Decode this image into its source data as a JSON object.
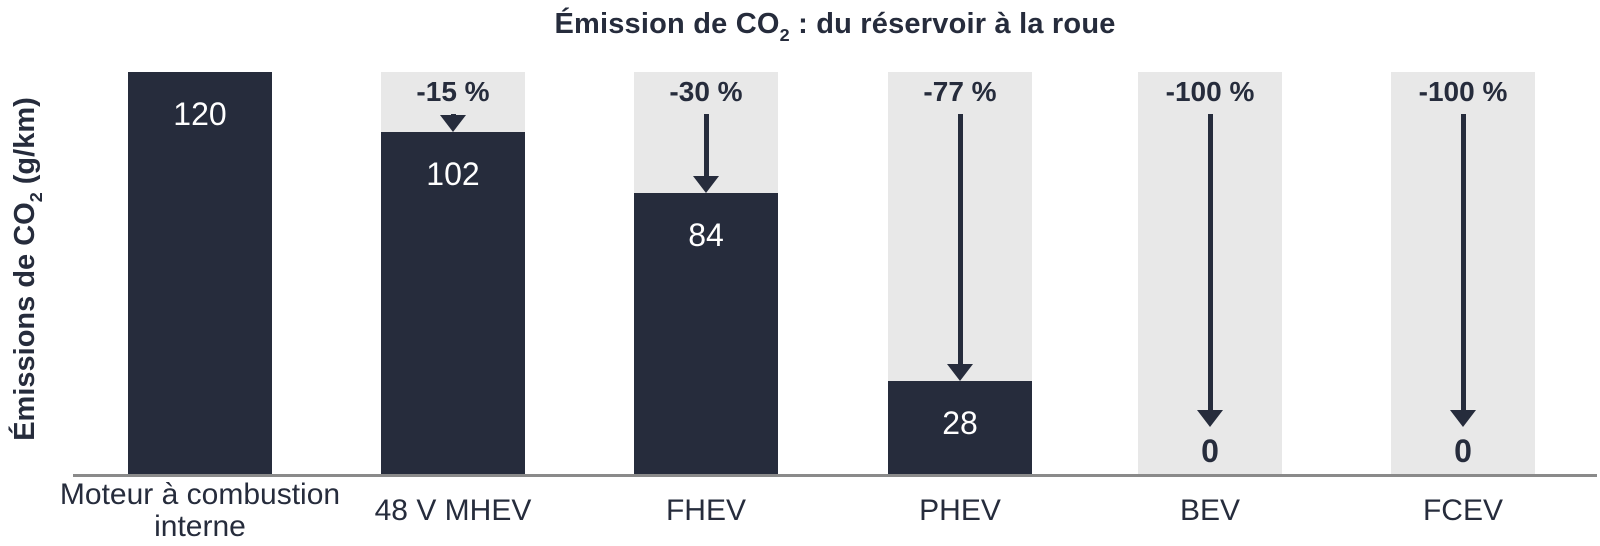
{
  "title": {
    "text_before_sub": "Émission de CO",
    "sub": "2",
    "text_after_sub": " : du réservoir à la roue"
  },
  "y_axis_label": {
    "text_before_sub": "Émissions de CO",
    "sub": "2",
    "text_after_sub": " (g/km)"
  },
  "chart_data": {
    "type": "bar",
    "title": "Émission de CO2 : du réservoir à la roue",
    "ylabel": "Émissions de CO2 (g/km)",
    "xlabel": "",
    "unit": "g/km",
    "ylim": [
      0,
      120
    ],
    "grid": false,
    "legend": false,
    "baseline_reference_value": 120,
    "categories": [
      "Moteur à combustion interne",
      "48 V MHEV",
      "FHEV",
      "PHEV",
      "BEV",
      "FCEV"
    ],
    "values": [
      120,
      102,
      84,
      28,
      0,
      0
    ],
    "reduction_labels": [
      null,
      "-15 %",
      "-30 %",
      "-77 %",
      "-100 %",
      "-100 %"
    ],
    "columns": [
      {
        "category": "Moteur à combustion interne",
        "value": 120,
        "value_label": "120",
        "reduction_label": null
      },
      {
        "category": "48 V MHEV",
        "value": 102,
        "value_label": "102",
        "reduction_label": "-15 %"
      },
      {
        "category": "FHEV",
        "value": 84,
        "value_label": "84",
        "reduction_label": "-30 %"
      },
      {
        "category": "PHEV",
        "value": 28,
        "value_label": "28",
        "reduction_label": "-77 %"
      },
      {
        "category": "BEV",
        "value": 0,
        "value_label": "0",
        "reduction_label": "-100 %"
      },
      {
        "category": "FCEV",
        "value": 0,
        "value_label": "0",
        "reduction_label": "-100 %"
      }
    ],
    "colors": {
      "bar": "#262C3C",
      "column_background": "#E8E8E8",
      "bar_value_text": "#FFFFFF",
      "text": "#262C3C",
      "axis_line": "#8A8A8A",
      "page_background": "#FFFFFF"
    }
  }
}
